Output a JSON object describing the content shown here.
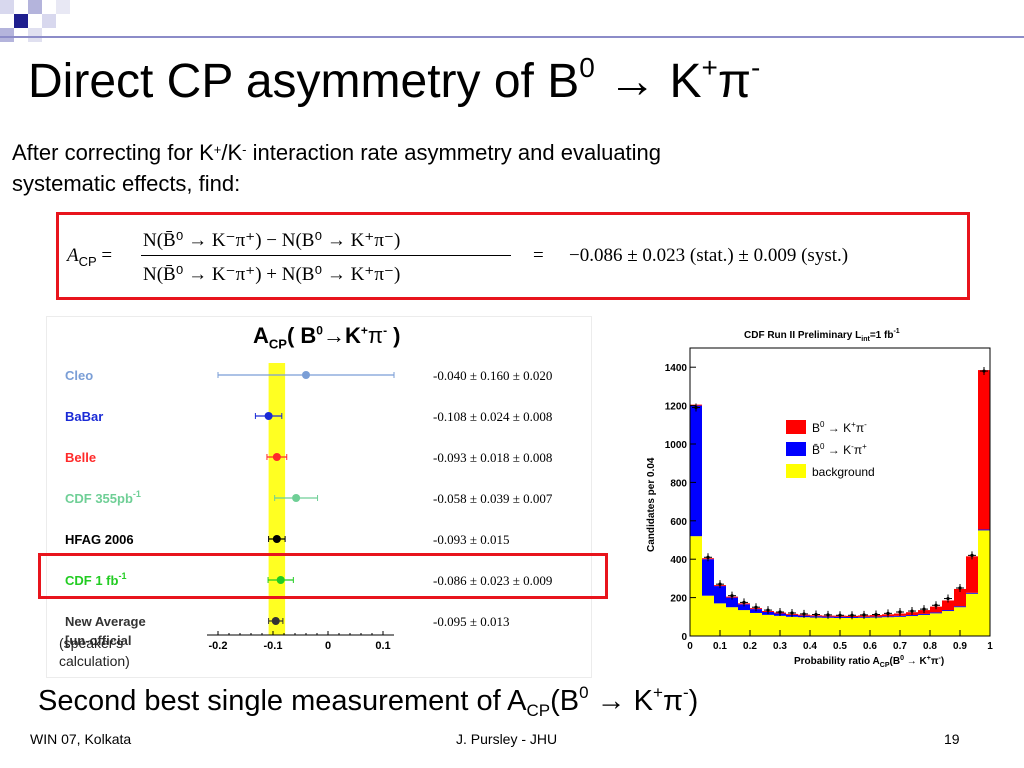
{
  "slide": {
    "title_main": "Direct CP asymmetry of B",
    "title_sup0": "0",
    "title_arrow": " → K",
    "title_supplus": "+",
    "title_pi": "π",
    "title_supminus": "-",
    "intro_line1_a": "After correcting for K",
    "intro_line1_sup1": "+",
    "intro_line1_b": "/K",
    "intro_line1_sup2": "-",
    "intro_line1_c": " interaction rate asymmetry and evaluating",
    "intro_line2": "systematic effects, find:",
    "bottom_a": "Second best single measurement of A",
    "bottom_sub": "CP",
    "bottom_b": "(B",
    "bottom_sup0": "0",
    "bottom_c": " → K",
    "bottom_supplus": "+",
    "bottom_pi": "π",
    "bottom_supminus": "-",
    "bottom_d": ")",
    "footer_left": "WIN 07, Kolkata",
    "footer_center": "J. Pursley - JHU",
    "footer_right": "19"
  },
  "formula": {
    "lhs": "A",
    "lhs_sub": "CP",
    "equals": "=",
    "numerator": "N(B̄⁰ → K⁻π⁺) − N(B⁰ → K⁺π⁻)",
    "denominator": "N(B̄⁰ → K⁻π⁺) + N(B⁰ → K⁺π⁻)",
    "result_equals": "=",
    "result": "−0.086 ± 0.023 (stat.) ± 0.009 (syst.)"
  },
  "comparison_plot": {
    "header_a": "A",
    "header_sub": "CP",
    "header_b": "( B",
    "header_sup0": "0",
    "header_c": "→K",
    "header_supplus": "+",
    "header_pi": "π",
    "header_supminus": "-",
    "header_close": " )",
    "band_center": -0.093,
    "band_halfwidth": 0.015,
    "xticks": [
      "-0.2",
      "-0.1",
      "0",
      "0.1"
    ],
    "xtick_values": [
      -0.2,
      -0.1,
      0,
      0.1
    ],
    "xlim": [
      -0.22,
      0.12
    ],
    "highlight_label": "CDF 1 fb",
    "highlight_sup": "-1",
    "note_line1": "(speaker's",
    "note_line2": "calculation)",
    "measurements": [
      {
        "name": "Cleo",
        "sup": "",
        "value": -0.04,
        "err_lo": 0.16,
        "err_hi": 0.16,
        "text": "-0.040 ± 0.160 ± 0.020",
        "color": "#7a9ed6"
      },
      {
        "name": "BaBar",
        "sup": "",
        "value": -0.108,
        "err_lo": 0.024,
        "err_hi": 0.024,
        "text": "-0.108 ± 0.024 ± 0.008",
        "color": "#1a2ad6"
      },
      {
        "name": "Belle",
        "sup": "",
        "value": -0.093,
        "err_lo": 0.018,
        "err_hi": 0.018,
        "text": "-0.093 ± 0.018 ± 0.008",
        "color": "#ff2a2a"
      },
      {
        "name": "CDF 355pb",
        "sup": "-1",
        "value": -0.058,
        "err_lo": 0.039,
        "err_hi": 0.039,
        "text": "-0.058 ± 0.039 ± 0.007",
        "color": "#6fcf96"
      },
      {
        "name": "HFAG 2006",
        "sup": "",
        "value": -0.093,
        "err_lo": 0.015,
        "err_hi": 0.015,
        "text": "-0.093 ± 0.015",
        "color": "#000000"
      },
      {
        "name": "CDF 1 fb",
        "sup": "-1",
        "value": -0.086,
        "err_lo": 0.023,
        "err_hi": 0.023,
        "text": "-0.086 ± 0.023 ± 0.009",
        "color": "#22cc22"
      },
      {
        "name": "New Average",
        "name2": "[un-official",
        "sup": "",
        "value": -0.095,
        "err_lo": 0.013,
        "err_hi": 0.013,
        "text": "-0.095 ± 0.013",
        "color": "#333333"
      }
    ]
  },
  "chart_data": {
    "type": "bar",
    "title": "CDF Run II  Preliminary L",
    "title_sub": "int",
    "title_tail": "=1 fb",
    "title_sup": "-1",
    "xlabel_a": "Probability ratio  A",
    "xlabel_sub": "CP",
    "xlabel_b": "(B",
    "xlabel_sup0": "0",
    "xlabel_c": " → K",
    "xlabel_supplus": "+",
    "xlabel_pi": "π",
    "xlabel_supminus": "-",
    "xlabel_close": ")",
    "ylabel": "Candidates per 0.04",
    "xlim": [
      0,
      1
    ],
    "ylim": [
      0,
      1500
    ],
    "xticks": [
      "0",
      "0.1",
      "0.2",
      "0.3",
      "0.4",
      "0.5",
      "0.6",
      "0.7",
      "0.8",
      "0.9",
      "1"
    ],
    "yticks": [
      "0",
      "200",
      "400",
      "600",
      "800",
      "1000",
      "1200",
      "1400"
    ],
    "legend_position": "center-right",
    "legend": [
      {
        "label_a": "B",
        "label_sup0": "0",
        "label_b": " → K",
        "label_supplus": "+",
        "label_pi": "π",
        "label_supminus": "-",
        "color": "#ff0000"
      },
      {
        "label_a": "B̄",
        "label_sup0": "0",
        "label_b": " → K",
        "label_supplus": "-",
        "label_pi": "π",
        "label_supminus": "+",
        "color": "#0000ff"
      },
      {
        "label_a": "background",
        "label_sup0": "",
        "label_b": "",
        "label_supplus": "",
        "label_pi": "",
        "label_supminus": "",
        "color": "#ffff00"
      }
    ],
    "bin_width": 0.04,
    "series": [
      {
        "name": "background",
        "color": "#ffff00",
        "values": [
          520,
          210,
          170,
          150,
          135,
          120,
          110,
          105,
          100,
          98,
          96,
          95,
          94,
          94,
          95,
          96,
          98,
          100,
          104,
          110,
          118,
          130,
          150,
          220,
          550
        ]
      },
      {
        "name": "B̄0 → K-π+",
        "color": "#0000ff",
        "values": [
          680,
          190,
          90,
          50,
          30,
          20,
          15,
          12,
          10,
          8,
          7,
          6,
          6,
          5,
          5,
          5,
          5,
          5,
          5,
          5,
          5,
          5,
          5,
          5,
          5
        ]
      },
      {
        "name": "B0 → K+π-",
        "color": "#ff0000",
        "values": [
          5,
          5,
          5,
          5,
          5,
          5,
          5,
          5,
          5,
          5,
          5,
          5,
          6,
          6,
          7,
          8,
          10,
          12,
          15,
          20,
          30,
          50,
          90,
          190,
          830
        ]
      }
    ],
    "data_points": [
      1190,
      410,
      270,
      210,
      175,
      150,
      135,
      125,
      120,
      115,
      112,
      110,
      108,
      108,
      110,
      112,
      118,
      125,
      130,
      140,
      160,
      195,
      250,
      420,
      1380
    ]
  }
}
